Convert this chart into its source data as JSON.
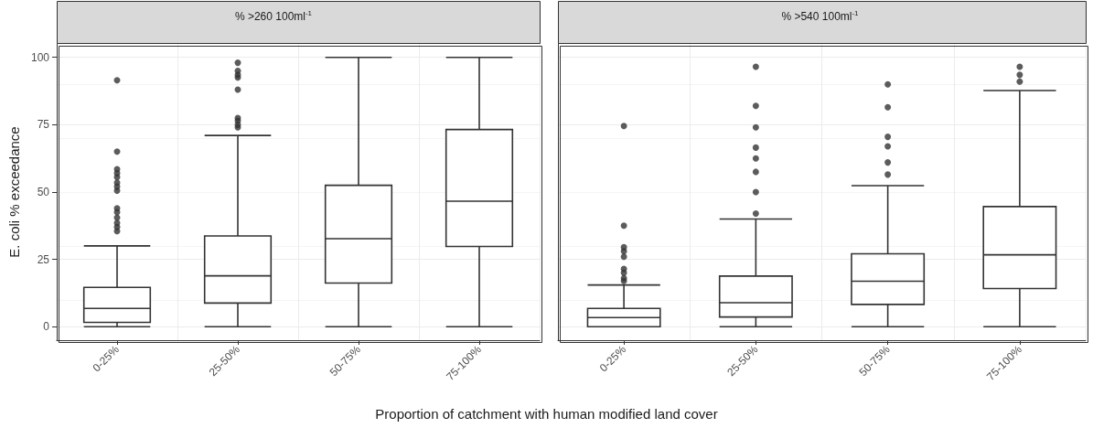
{
  "chart_data": [
    {
      "type": "box",
      "title": "% >260 100ml$^{-1}$",
      "ylabel": "E. coli % exceedance",
      "xlabel": "Proportion of catchment with human modified land cover",
      "categories": [
        "0-25%",
        "25-50%",
        "50-75%",
        "75-100%"
      ],
      "color": "#333333",
      "ylim": [
        -5,
        105
      ],
      "yticks": [
        0,
        25,
        50,
        75,
        100
      ],
      "grid": true,
      "boxes": [
        {
          "low": 0,
          "q1": 1.6,
          "median": 6.8,
          "q3": 14.6,
          "high": 30,
          "outliers": [
            91.5,
            65,
            58.5,
            57,
            55.5,
            53.5,
            52,
            50.5,
            44,
            42.5,
            40.5,
            38.5,
            37,
            35.5
          ]
        },
        {
          "low": 0,
          "q1": 8.8,
          "median": 18.9,
          "q3": 33.7,
          "high": 71,
          "outliers": [
            98,
            95,
            93.5,
            92.5,
            88,
            77.5,
            76.5,
            75,
            74
          ]
        },
        {
          "low": 0,
          "q1": 16.2,
          "median": 32.7,
          "q3": 52.5,
          "high": 100
        },
        {
          "low": 0,
          "q1": 29.8,
          "median": 46.6,
          "q3": 73.2,
          "high": 100
        }
      ]
    },
    {
      "type": "box",
      "title": "% >540 100ml$^{-1}$",
      "categories": [
        "0-25%",
        "25-50%",
        "50-75%",
        "75-100%"
      ],
      "color": "#333333",
      "ylim": [
        -5,
        105
      ],
      "yticks": [
        0,
        25,
        50,
        75,
        100
      ],
      "grid": true,
      "tick_labels": "x",
      "boxes": [
        {
          "low": 0,
          "q1": 0,
          "median": 3.4,
          "q3": 6.8,
          "high": 15.5,
          "outliers": [
            74.5,
            37.5,
            29.5,
            28,
            26,
            21.5,
            20,
            18,
            17
          ]
        },
        {
          "low": 0,
          "q1": 3.6,
          "median": 8.9,
          "q3": 18.8,
          "high": 40,
          "outliers": [
            96.5,
            82,
            74,
            66.5,
            62.5,
            57.5,
            50,
            42
          ]
        },
        {
          "low": 0,
          "q1": 8.3,
          "median": 16.9,
          "q3": 27.1,
          "high": 52.4,
          "outliers": [
            90,
            81.5,
            70.5,
            67,
            61,
            56.5
          ]
        },
        {
          "low": 0,
          "q1": 14.2,
          "median": 26.7,
          "q3": 44.6,
          "high": 87.7,
          "outliers": [
            96.5,
            93.5,
            91
          ]
        }
      ]
    }
  ]
}
